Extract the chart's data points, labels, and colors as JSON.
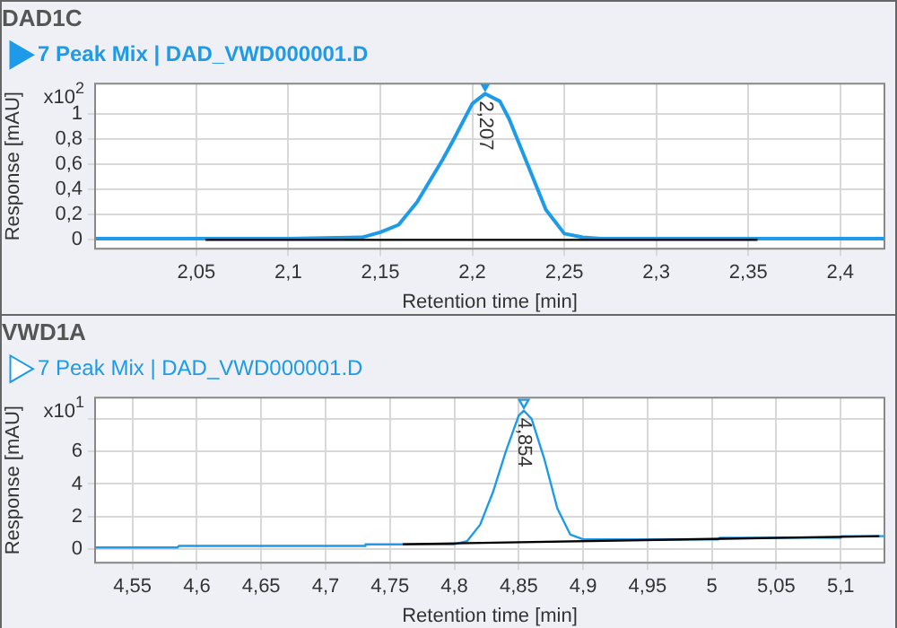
{
  "chart_data": [
    {
      "type": "line",
      "title": "DAD1C",
      "xlabel": "Retention time [min]",
      "ylabel": "Response [mAU]",
      "legend": "top",
      "grid": true,
      "marker": "none",
      "series": [
        {
          "name": "7 Peak Mix | DAD_VWD000001.D",
          "color": "#1e9be8",
          "x": [
            1.995,
            2.1,
            2.14,
            2.15,
            2.16,
            2.17,
            2.184,
            2.19,
            2.2,
            2.207,
            2.215,
            2.22,
            2.23,
            2.24,
            2.25,
            2.26,
            2.27,
            2.424
          ],
          "values": [
            0.01,
            0.01,
            0.02,
            0.06,
            0.12,
            0.3,
            0.64,
            0.8,
            1.08,
            1.16,
            1.1,
            0.96,
            0.6,
            0.24,
            0.05,
            0.02,
            0.01,
            0.01
          ]
        },
        {
          "color": "#000000",
          "x": [
            2.055,
            2.355
          ],
          "values": [
            0,
            0
          ]
        },
        {
          "type": "scatter",
          "marker": "triangle",
          "color": "#1e9be8",
          "x": [
            2.207
          ],
          "values": [
            1.23
          ]
        }
      ],
      "xlim": [
        1.995,
        2.424
      ],
      "xticks": [
        {
          "value": 2.05,
          "label": "2,05"
        },
        {
          "value": 2.1,
          "label": "2,1"
        },
        {
          "value": 2.15,
          "label": "2,15"
        },
        {
          "value": 2.2,
          "label": "2,2"
        },
        {
          "value": 2.25,
          "label": "2,25"
        },
        {
          "value": 2.3,
          "label": "2,3"
        },
        {
          "value": 2.35,
          "label": "2,35"
        },
        {
          "value": 2.4,
          "label": "2,4"
        }
      ],
      "ylim": [
        -0.07,
        1.24
      ],
      "yticks": [
        0,
        {
          "value": 0.2,
          "label": "0,2"
        },
        {
          "value": 0.4,
          "label": "0,4"
        },
        {
          "value": 0.6,
          "label": "0,6"
        },
        {
          "value": 0.8,
          "label": "0,8"
        },
        1
      ],
      "annotations": [
        "x10$^{2}$",
        {
          "text": "2,207",
          "x": 2.207,
          "y": 1.16
        }
      ]
    },
    {
      "type": "line",
      "title": "VWD1A",
      "xlabel": "Retention time [min]",
      "ylabel": "Response [mAU]",
      "legend": "top",
      "grid": true,
      "marker": "none",
      "series": [
        {
          "name": "7 Peak Mix | DAD_VWD000001.D",
          "color": "#1e9be8",
          "x": [
            4.521,
            4.585,
            4.586,
            4.73,
            4.731,
            4.8,
            4.81,
            4.82,
            4.83,
            4.84,
            4.85,
            4.854,
            4.86,
            4.87,
            4.88,
            4.89,
            4.9,
            5.005,
            5.006,
            5.1,
            5.101,
            5.134
          ],
          "values": [
            0.1,
            0.1,
            0.2,
            0.2,
            0.3,
            0.3,
            0.5,
            1.5,
            3.5,
            6,
            8.2,
            8.5,
            8,
            5.5,
            2.5,
            0.9,
            0.6,
            0.6,
            0.7,
            0.7,
            0.8,
            0.8
          ]
        },
        {
          "color": "#000000",
          "x": [
            4.76,
            5.13
          ],
          "values": [
            0.3,
            0.8
          ]
        },
        {
          "type": "scatter",
          "marker": "triangle",
          "color": "#1e9be8",
          "x": [
            4.854
          ],
          "values": [
            9
          ]
        }
      ],
      "xlim": [
        4.521,
        5.134
      ],
      "xticks": [
        {
          "value": 4.55,
          "label": "4,55"
        },
        {
          "value": 4.6,
          "label": "4,6"
        },
        {
          "value": 4.65,
          "label": "4,65"
        },
        {
          "value": 4.7,
          "label": "4,7"
        },
        {
          "value": 4.75,
          "label": "4,75"
        },
        {
          "value": 4.8,
          "label": "4,8"
        },
        {
          "value": 4.85,
          "label": "4,85"
        },
        {
          "value": 4.9,
          "label": "4,9"
        },
        {
          "value": 4.95,
          "label": "4,95"
        },
        5,
        {
          "value": 5.05,
          "label": "5,05"
        },
        {
          "value": 5.1,
          "label": "5,1"
        }
      ],
      "ylim": [
        -0.83,
        9.3
      ],
      "yticks": [
        0,
        2,
        4,
        6,
        {
          "value": 8,
          "label": null
        }
      ],
      "annotations": [
        "x10$^{1}$",
        {
          "text": "4,854",
          "x": 4.854,
          "y": 8.5
        }
      ]
    }
  ]
}
